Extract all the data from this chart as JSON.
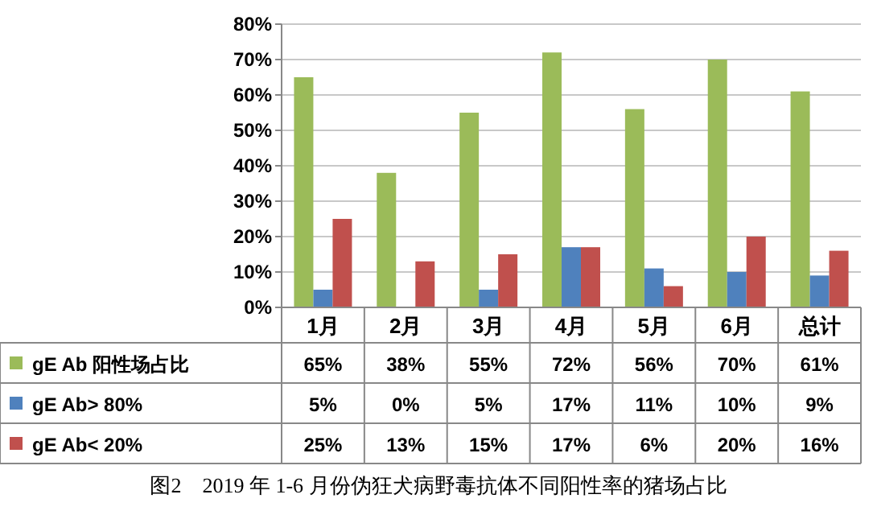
{
  "chart_data": {
    "type": "bar",
    "categories": [
      "1月",
      "2月",
      "3月",
      "4月",
      "5月",
      "6月",
      "总计"
    ],
    "series": [
      {
        "name": "gE Ab 阳性场占比",
        "color": "#9bbb59",
        "values": [
          65,
          38,
          55,
          72,
          56,
          70,
          61
        ],
        "value_labels": [
          "65%",
          "38%",
          "55%",
          "72%",
          "56%",
          "70%",
          "61%"
        ]
      },
      {
        "name": "gE Ab> 80%",
        "color": "#4f81bd",
        "values": [
          5,
          0,
          5,
          17,
          11,
          10,
          9
        ],
        "value_labels": [
          "5%",
          "0%",
          "5%",
          "17%",
          "11%",
          "10%",
          "9%"
        ]
      },
      {
        "name": "gE Ab< 20%",
        "color": "#c0504d",
        "values": [
          25,
          13,
          15,
          17,
          6,
          20,
          16
        ],
        "value_labels": [
          "25%",
          "13%",
          "15%",
          "17%",
          "6%",
          "20%",
          "16%"
        ]
      }
    ],
    "ylim": [
      0,
      80
    ],
    "yticks": [
      {
        "value": 0,
        "label": "0%"
      },
      {
        "value": 10,
        "label": "10%"
      },
      {
        "value": 20,
        "label": "20%"
      },
      {
        "value": 30,
        "label": "30%"
      },
      {
        "value": 40,
        "label": "40%"
      },
      {
        "value": 50,
        "label": "50%"
      },
      {
        "value": 60,
        "label": "60%"
      },
      {
        "value": 70,
        "label": "70%"
      },
      {
        "value": 80,
        "label": "80%"
      }
    ],
    "grid": "y",
    "legend": "bottom",
    "annotations": [
      "图2　2019 年 1-6 月份伪狂犬病野毒抗体不同阳性率的猪场占比"
    ]
  }
}
